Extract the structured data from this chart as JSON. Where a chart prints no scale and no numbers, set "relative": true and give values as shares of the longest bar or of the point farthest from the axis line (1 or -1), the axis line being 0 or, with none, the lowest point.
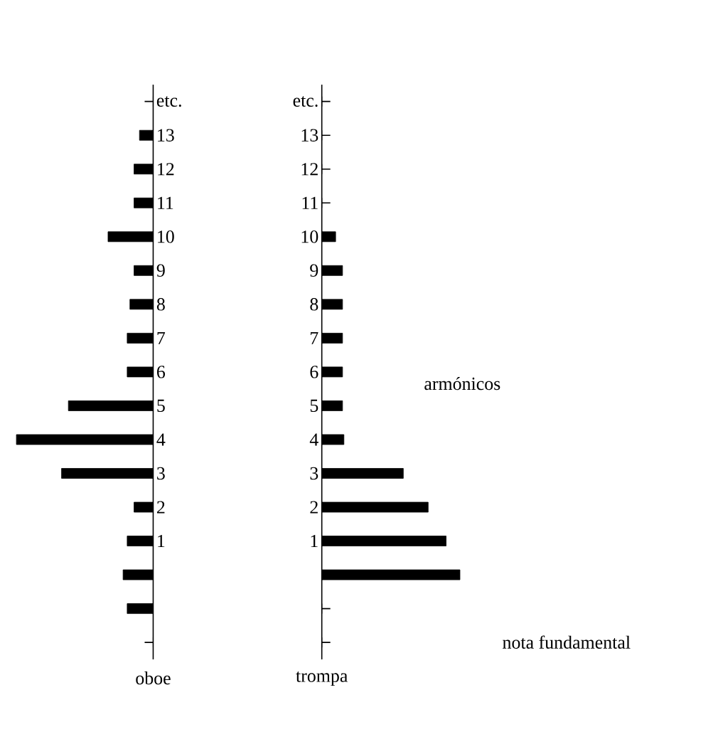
{
  "chart_data": [
    {
      "type": "bar",
      "orientation": "horizontal",
      "relative": true,
      "xlabel": "oboe",
      "categories": [
        "etc.",
        "13",
        "12",
        "11",
        "10",
        "9",
        "8",
        "7",
        "6",
        "5",
        "4",
        "3",
        "2",
        "1",
        null,
        null,
        null
      ],
      "series": [
        {
          "color": "#000000",
          "values": [
            0,
            -0.1,
            -0.14,
            -0.14,
            -0.33,
            -0.14,
            -0.17,
            -0.19,
            -0.19,
            -0.62,
            -1,
            -0.67,
            -0.14,
            -0.19,
            -0.22,
            -0.19,
            0
          ]
        }
      ]
    },
    {
      "type": "bar",
      "orientation": "horizontal",
      "relative": true,
      "xlabel": "trompa",
      "categories": [
        "etc.",
        "13",
        "12",
        "11",
        "10",
        "9",
        "8",
        "7",
        "6",
        "5",
        "4",
        "3",
        "2",
        "1",
        null,
        null,
        null
      ],
      "series": [
        {
          "color": "#000000",
          "values": [
            0,
            0,
            0,
            0,
            0.1,
            0.15,
            0.15,
            0.15,
            0.15,
            0.15,
            0.16,
            0.59,
            0.77,
            0.9,
            1,
            0,
            0
          ]
        }
      ],
      "annotations": [
        "armónicos",
        "nota fundamental"
      ]
    }
  ]
}
